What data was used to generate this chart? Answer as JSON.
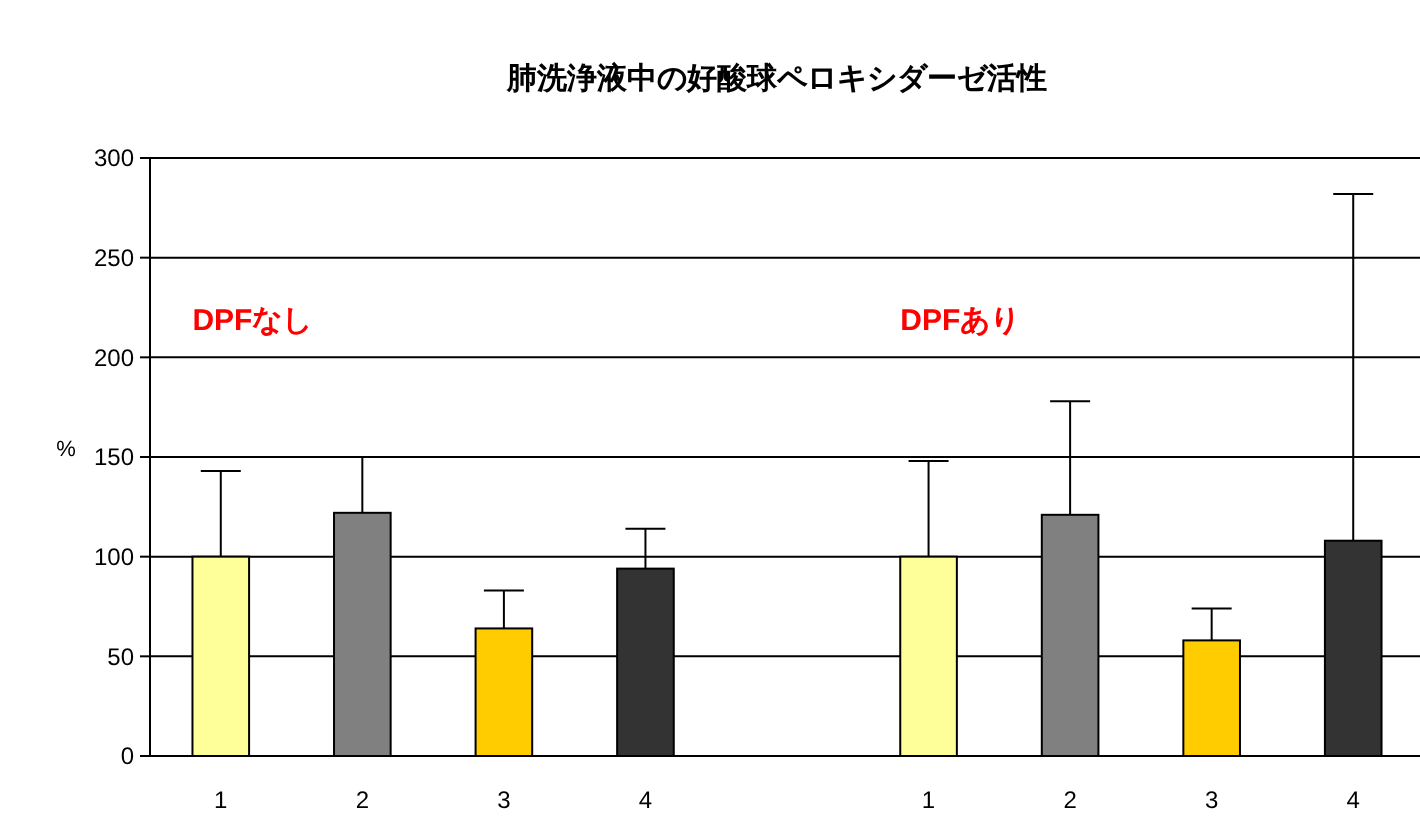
{
  "chart_data": {
    "type": "bar",
    "title": "肺洗浄液中の好酸球ペロキシダーゼ活性",
    "ylabel": "%",
    "categories": [
      "1",
      "2",
      "3",
      "4",
      null,
      "1",
      "2",
      "3",
      "4"
    ],
    "values": [
      100,
      122,
      64,
      94,
      null,
      100,
      121,
      58,
      108
    ],
    "colors": [
      "#ffff99",
      "#808080",
      "#ffcc00",
      "#333333",
      null,
      "#ffff99",
      "#808080",
      "#ffcc00",
      "#333333"
    ],
    "errors": [
      [
        100,
        143
      ],
      [
        122,
        150
      ],
      [
        64,
        83
      ],
      [
        94,
        114
      ],
      null,
      [
        100,
        148
      ],
      [
        121,
        178
      ],
      [
        58,
        74
      ],
      [
        108,
        282
      ]
    ],
    "ylim": [
      0,
      300
    ],
    "yticks": [
      0,
      50,
      100,
      150,
      200,
      250,
      300
    ],
    "grid": "y",
    "annotations": [
      "DPFなし",
      "DPFあり"
    ]
  }
}
